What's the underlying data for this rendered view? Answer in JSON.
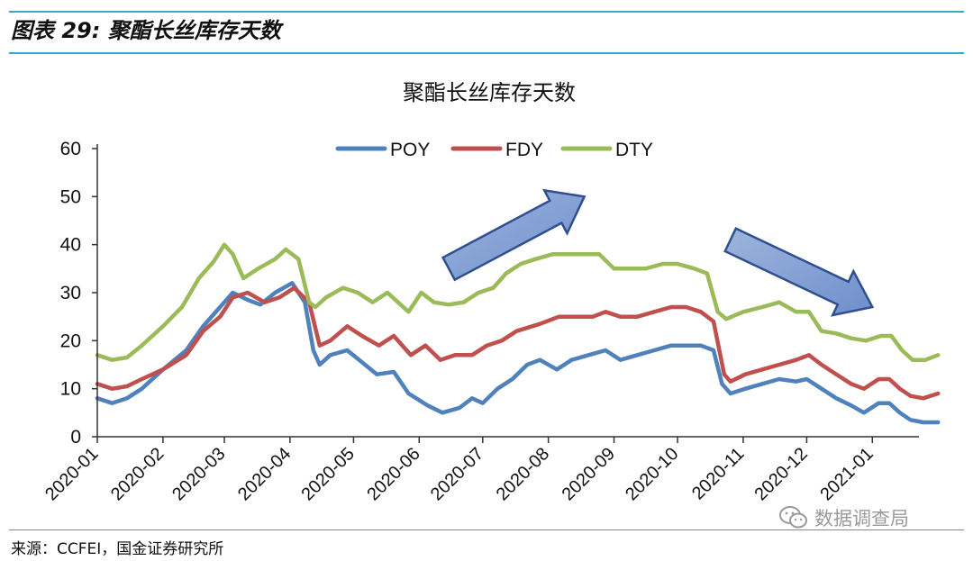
{
  "figure": {
    "label": "图表 29:",
    "heading": "聚酯长丝库存天数",
    "source": "来源：CCFEI，国金证券研究所"
  },
  "watermark": {
    "text": "数据调查局",
    "icon": "wechat-icon"
  },
  "chart_data": {
    "type": "line",
    "title": "聚酯长丝库存天数",
    "xlabel": "",
    "ylabel": "",
    "ylim": [
      0,
      60
    ],
    "yticks": [
      0,
      10,
      20,
      30,
      40,
      50,
      60
    ],
    "xlim": [
      "2020-01-01",
      "2021-01-23"
    ],
    "xticks": [
      "2020-01",
      "2020-02",
      "2020-03",
      "2020-04",
      "2020-05",
      "2020-06",
      "2020-07",
      "2020-08",
      "2020-09",
      "2020-10",
      "2020-11",
      "2020-12",
      "2021-01"
    ],
    "legend_position": "top",
    "grid": false,
    "series": [
      {
        "name": "POY",
        "color": "#4f81bd",
        "points": [
          [
            "2020-01-01",
            8
          ],
          [
            "2020-01-08",
            7
          ],
          [
            "2020-01-15",
            8
          ],
          [
            "2020-01-22",
            10
          ],
          [
            "2020-02-01",
            14
          ],
          [
            "2020-02-12",
            18
          ],
          [
            "2020-02-20",
            23
          ],
          [
            "2020-02-28",
            27
          ],
          [
            "2020-03-05",
            30
          ],
          [
            "2020-03-12",
            28.5
          ],
          [
            "2020-03-18",
            27.5
          ],
          [
            "2020-03-25",
            30
          ],
          [
            "2020-04-02",
            32
          ],
          [
            "2020-04-08",
            28
          ],
          [
            "2020-04-12",
            18
          ],
          [
            "2020-04-15",
            15
          ],
          [
            "2020-04-20",
            17
          ],
          [
            "2020-04-28",
            18
          ],
          [
            "2020-05-05",
            15.5
          ],
          [
            "2020-05-12",
            13
          ],
          [
            "2020-05-20",
            13.5
          ],
          [
            "2020-05-27",
            9
          ],
          [
            "2020-06-05",
            6.5
          ],
          [
            "2020-06-12",
            5
          ],
          [
            "2020-06-20",
            6
          ],
          [
            "2020-06-26",
            8
          ],
          [
            "2020-07-01",
            7
          ],
          [
            "2020-07-08",
            10
          ],
          [
            "2020-07-15",
            12
          ],
          [
            "2020-07-22",
            15
          ],
          [
            "2020-07-28",
            16
          ],
          [
            "2020-08-05",
            14
          ],
          [
            "2020-08-12",
            16
          ],
          [
            "2020-08-20",
            17
          ],
          [
            "2020-08-28",
            18
          ],
          [
            "2020-09-04",
            16
          ],
          [
            "2020-09-12",
            17
          ],
          [
            "2020-09-20",
            18
          ],
          [
            "2020-09-28",
            19
          ],
          [
            "2020-10-05",
            19
          ],
          [
            "2020-10-12",
            19
          ],
          [
            "2020-10-18",
            18
          ],
          [
            "2020-10-22",
            11
          ],
          [
            "2020-10-26",
            9
          ],
          [
            "2020-11-02",
            10
          ],
          [
            "2020-11-10",
            11
          ],
          [
            "2020-11-18",
            12
          ],
          [
            "2020-11-26",
            11.5
          ],
          [
            "2020-12-01",
            12
          ],
          [
            "2020-12-08",
            10
          ],
          [
            "2020-12-15",
            8
          ],
          [
            "2020-12-22",
            6.5
          ],
          [
            "2020-12-28",
            5
          ],
          [
            "2021-01-04",
            7
          ],
          [
            "2021-01-09",
            7
          ],
          [
            "2021-01-14",
            5
          ],
          [
            "2021-01-19",
            3.5
          ],
          [
            "2021-01-25",
            3
          ],
          [
            "2021-02-01",
            3
          ]
        ]
      },
      {
        "name": "FDY",
        "color": "#c0504d",
        "points": [
          [
            "2020-01-01",
            11
          ],
          [
            "2020-01-08",
            10
          ],
          [
            "2020-01-15",
            10.5
          ],
          [
            "2020-01-22",
            12
          ],
          [
            "2020-02-01",
            14
          ],
          [
            "2020-02-12",
            17
          ],
          [
            "2020-02-20",
            22
          ],
          [
            "2020-02-28",
            25
          ],
          [
            "2020-03-05",
            29
          ],
          [
            "2020-03-12",
            30
          ],
          [
            "2020-03-20",
            28
          ],
          [
            "2020-03-27",
            29
          ],
          [
            "2020-04-03",
            31
          ],
          [
            "2020-04-10",
            28
          ],
          [
            "2020-04-15",
            19
          ],
          [
            "2020-04-20",
            20
          ],
          [
            "2020-04-28",
            23
          ],
          [
            "2020-05-05",
            21
          ],
          [
            "2020-05-13",
            19
          ],
          [
            "2020-05-20",
            21
          ],
          [
            "2020-05-28",
            17
          ],
          [
            "2020-06-04",
            19
          ],
          [
            "2020-06-11",
            16
          ],
          [
            "2020-06-18",
            17
          ],
          [
            "2020-06-26",
            17
          ],
          [
            "2020-07-03",
            19
          ],
          [
            "2020-07-10",
            20
          ],
          [
            "2020-07-17",
            22
          ],
          [
            "2020-07-28",
            23.5
          ],
          [
            "2020-08-06",
            25
          ],
          [
            "2020-08-15",
            25
          ],
          [
            "2020-08-22",
            25
          ],
          [
            "2020-08-28",
            26
          ],
          [
            "2020-09-04",
            25
          ],
          [
            "2020-09-12",
            25
          ],
          [
            "2020-09-20",
            26
          ],
          [
            "2020-09-28",
            27
          ],
          [
            "2020-10-05",
            27
          ],
          [
            "2020-10-12",
            26
          ],
          [
            "2020-10-18",
            24
          ],
          [
            "2020-10-23",
            13
          ],
          [
            "2020-10-26",
            11.5
          ],
          [
            "2020-11-02",
            13
          ],
          [
            "2020-11-10",
            14
          ],
          [
            "2020-11-18",
            15
          ],
          [
            "2020-11-26",
            16
          ],
          [
            "2020-12-02",
            17
          ],
          [
            "2020-12-08",
            15
          ],
          [
            "2020-12-15",
            13
          ],
          [
            "2020-12-22",
            11
          ],
          [
            "2020-12-28",
            10
          ],
          [
            "2021-01-04",
            12
          ],
          [
            "2021-01-09",
            12
          ],
          [
            "2021-01-14",
            10
          ],
          [
            "2021-01-19",
            8.5
          ],
          [
            "2021-01-25",
            8
          ],
          [
            "2021-02-01",
            9
          ]
        ]
      },
      {
        "name": "DTY",
        "color": "#9bbb59",
        "points": [
          [
            "2020-01-01",
            17
          ],
          [
            "2020-01-08",
            16
          ],
          [
            "2020-01-15",
            16.5
          ],
          [
            "2020-01-22",
            19
          ],
          [
            "2020-02-01",
            23
          ],
          [
            "2020-02-10",
            27
          ],
          [
            "2020-02-18",
            33
          ],
          [
            "2020-02-25",
            36.5
          ],
          [
            "2020-03-01",
            40
          ],
          [
            "2020-03-05",
            38
          ],
          [
            "2020-03-10",
            33
          ],
          [
            "2020-03-17",
            35
          ],
          [
            "2020-03-25",
            37
          ],
          [
            "2020-03-30",
            39
          ],
          [
            "2020-04-05",
            37
          ],
          [
            "2020-04-10",
            28
          ],
          [
            "2020-04-13",
            27
          ],
          [
            "2020-04-18",
            29
          ],
          [
            "2020-04-26",
            31
          ],
          [
            "2020-05-03",
            30
          ],
          [
            "2020-05-10",
            28
          ],
          [
            "2020-05-17",
            30
          ],
          [
            "2020-05-22",
            28
          ],
          [
            "2020-05-27",
            26
          ],
          [
            "2020-06-02",
            30
          ],
          [
            "2020-06-08",
            28
          ],
          [
            "2020-06-15",
            27.5
          ],
          [
            "2020-06-22",
            28
          ],
          [
            "2020-06-29",
            30
          ],
          [
            "2020-07-06",
            31
          ],
          [
            "2020-07-12",
            34
          ],
          [
            "2020-07-19",
            36
          ],
          [
            "2020-07-26",
            37
          ],
          [
            "2020-08-03",
            38
          ],
          [
            "2020-08-10",
            38
          ],
          [
            "2020-08-18",
            38
          ],
          [
            "2020-08-25",
            38
          ],
          [
            "2020-09-01",
            35
          ],
          [
            "2020-09-08",
            35
          ],
          [
            "2020-09-16",
            35
          ],
          [
            "2020-09-24",
            36
          ],
          [
            "2020-10-01",
            36
          ],
          [
            "2020-10-09",
            35
          ],
          [
            "2020-10-15",
            34
          ],
          [
            "2020-10-20",
            26
          ],
          [
            "2020-10-24",
            24.5
          ],
          [
            "2020-11-01",
            26
          ],
          [
            "2020-11-10",
            27
          ],
          [
            "2020-11-18",
            28
          ],
          [
            "2020-11-26",
            26
          ],
          [
            "2020-12-02",
            26
          ],
          [
            "2020-12-08",
            22
          ],
          [
            "2020-12-15",
            21.5
          ],
          [
            "2020-12-22",
            20.5
          ],
          [
            "2020-12-29",
            20
          ],
          [
            "2021-01-05",
            21
          ],
          [
            "2021-01-10",
            21
          ],
          [
            "2021-01-15",
            18
          ],
          [
            "2021-01-20",
            16
          ],
          [
            "2021-01-26",
            16
          ],
          [
            "2021-02-01",
            17
          ]
        ]
      }
    ],
    "annotations": [
      {
        "type": "arrow",
        "direction": "up-right",
        "from": [
          "2020-06-15",
          35
        ],
        "to": [
          "2020-08-18",
          50
        ]
      },
      {
        "type": "arrow",
        "direction": "down-right",
        "from": [
          "2020-10-26",
          41
        ],
        "to": [
          "2021-01-01",
          27
        ]
      }
    ]
  }
}
